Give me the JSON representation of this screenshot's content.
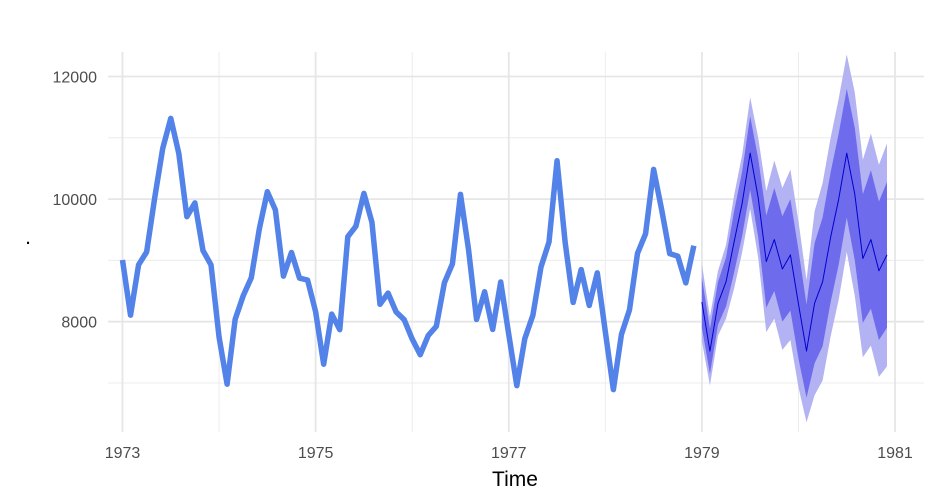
{
  "chart_data": {
    "type": "line",
    "xlabel": "Time",
    "ylabel": ".",
    "xlim": [
      1972.85,
      1981.3
    ],
    "ylim": [
      6200,
      12400
    ],
    "x_ticks": [
      1973,
      1975,
      1977,
      1979,
      1981
    ],
    "x_tick_labels": [
      "1973",
      "1975",
      "1977",
      "1979",
      "1981"
    ],
    "y_ticks": [
      8000,
      10000,
      12000
    ],
    "y_tick_labels": [
      "8000",
      "10000",
      "12000"
    ],
    "grid": true,
    "legend": "none",
    "colors": {
      "observed": "#5382e8",
      "forecast": "#0000cc",
      "band80": "#6e6ced",
      "band95": "#b3b2f2"
    },
    "observed": {
      "start": 1973.0,
      "step": 0.0833333,
      "values": [
        9007,
        8106,
        8928,
        9137,
        10017,
        10826,
        11317,
        10744,
        9713,
        9938,
        9161,
        8927,
        7750,
        6981,
        8038,
        8422,
        8714,
        9512,
        10120,
        9823,
        8743,
        9129,
        8710,
        8680,
        8162,
        7306,
        8124,
        7870,
        9387,
        9556,
        10093,
        9620,
        8285,
        8466,
        8160,
        8034,
        7717,
        7461,
        7776,
        7925,
        8634,
        8945,
        10078,
        9179,
        8037,
        8488,
        7874,
        8647,
        7792,
        6957,
        7726,
        8106,
        8890,
        9299,
        10625,
        9302,
        8314,
        8850,
        8265,
        8796,
        7836,
        6892,
        7791,
        8192,
        9115,
        9434,
        10484,
        9827,
        9110,
        9070,
        8633,
        9240
      ]
    },
    "forecast": {
      "start": 1979.0,
      "step": 0.0833333,
      "mean": [
        8320,
        7520,
        8300,
        8650,
        9300,
        9930,
        10750,
        10020,
        8980,
        9340,
        8860,
        9090,
        8290,
        7520,
        8300,
        8650,
        9380,
        10000,
        10750,
        10080,
        9030,
        9340,
        8830,
        9090
      ],
      "lo80": [
        7900,
        7150,
        7950,
        8250,
        8800,
        9400,
        10150,
        9380,
        8230,
        8500,
        8000,
        8180,
        7400,
        6760,
        7320,
        7600,
        8320,
        8930,
        9700,
        9000,
        7980,
        8210,
        7700,
        7900
      ],
      "hi80": [
        8720,
        7880,
        8650,
        9050,
        9800,
        10450,
        11350,
        10660,
        9730,
        10180,
        9720,
        10000,
        9170,
        8280,
        9280,
        9700,
        10440,
        11070,
        11800,
        11160,
        10080,
        10470,
        9960,
        10280
      ],
      "lo95": [
        7680,
        6960,
        7770,
        8050,
        8540,
        9130,
        9840,
        9040,
        7830,
        8050,
        7540,
        7700,
        6930,
        6360,
        6800,
        7040,
        7760,
        8360,
        9140,
        8420,
        7420,
        7610,
        7100,
        7270
      ],
      "hi95": [
        8940,
        8080,
        8830,
        9250,
        10060,
        10720,
        11660,
        11000,
        10130,
        10630,
        10180,
        10480,
        9640,
        8680,
        9800,
        10260,
        11000,
        11640,
        12360,
        11740,
        10640,
        11070,
        10560,
        10910
      ]
    }
  }
}
